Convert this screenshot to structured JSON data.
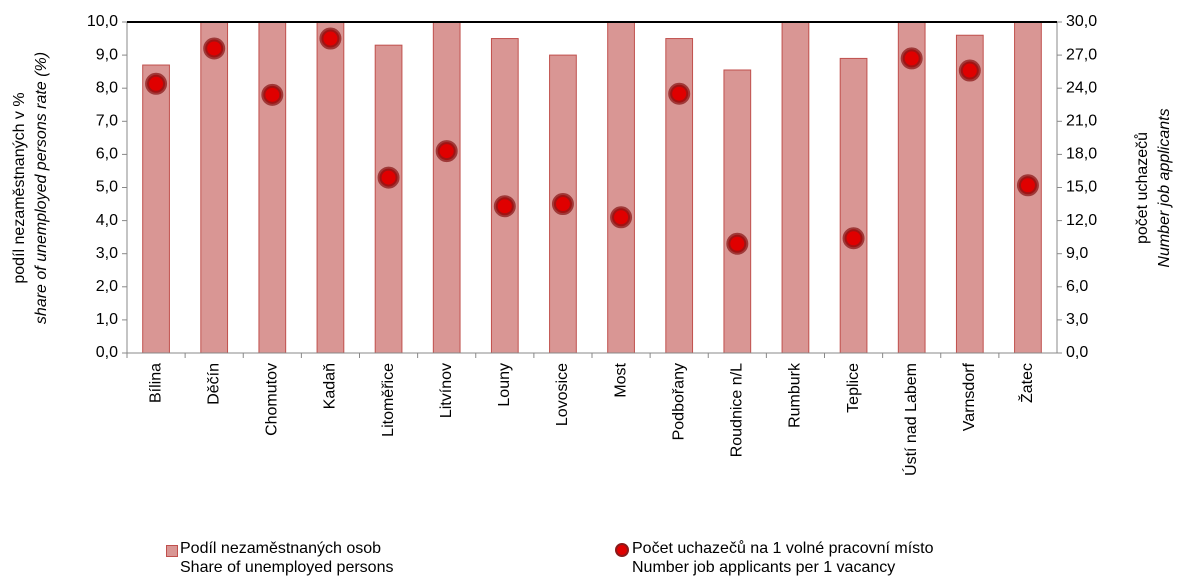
{
  "chart_data": {
    "type": "bar_dot",
    "y_label": "podíl nezaměstnaných v %",
    "y_label_en": "share of unemployed persons  rate (%)",
    "y2_label": "počet uchazečů",
    "y2_label_en": "Number job applicants",
    "categories": [
      "Bílina",
      "Děčín",
      "Chomutov",
      "Kadaň",
      "Litoměřice",
      "Litvínov",
      "Louny",
      "Lovosice",
      "Most",
      "Podbořany",
      "Roudnice n/L",
      "Rumburk",
      "Teplice",
      "Ústí nad Labem",
      "Varnsdorf",
      "Žatec"
    ],
    "series": [
      {
        "name": "Podíl nezaměstnaných osob\nShare of unemployed persons",
        "type": "bar",
        "color": "#d99694",
        "edge": "#c0504d",
        "values": [
          8.7,
          10.0,
          10.0,
          10.0,
          9.3,
          10.0,
          9.5,
          9.0,
          10.0,
          9.5,
          8.55,
          10.0,
          8.9,
          10.0,
          9.6,
          10.0
        ]
      },
      {
        "name": "Počet uchazečů na 1 volné pracovní místo\nNumber job applicants per 1 vacancy",
        "type": "dot",
        "axis": "y2",
        "color": "#e00000",
        "edge": "#8b1a1a",
        "values": [
          24.4,
          27.6,
          23.4,
          28.5,
          15.9,
          18.3,
          13.3,
          13.5,
          12.3,
          23.5,
          9.9,
          null,
          10.4,
          26.7,
          25.6,
          15.2
        ]
      }
    ],
    "ylim": [
      0,
      10
    ],
    "yticks": [
      {
        "value": 0,
        "label": "0,0"
      },
      {
        "value": 1,
        "label": "1,0"
      },
      {
        "value": 2,
        "label": "2,0"
      },
      {
        "value": 3,
        "label": "3,0"
      },
      {
        "value": 4,
        "label": "4,0"
      },
      {
        "value": 5,
        "label": "5,0"
      },
      {
        "value": 6,
        "label": "6,0"
      },
      {
        "value": 7,
        "label": "7,0"
      },
      {
        "value": 8,
        "label": "8,0"
      },
      {
        "value": 9,
        "label": "9,0"
      },
      {
        "value": 10,
        "label": "10,0"
      }
    ],
    "y2lim": [
      0,
      30
    ],
    "y2ticks": [
      {
        "value": 0,
        "label": "0,0"
      },
      {
        "value": 3,
        "label": "3,0"
      },
      {
        "value": 6,
        "label": "6,0"
      },
      {
        "value": 9,
        "label": "9,0"
      },
      {
        "value": 12,
        "label": "12,0"
      },
      {
        "value": 15,
        "label": "15,0"
      },
      {
        "value": 18,
        "label": "18,0"
      },
      {
        "value": 21,
        "label": "21,0"
      },
      {
        "value": 24,
        "label": "24,0"
      },
      {
        "value": 27,
        "label": "27,0"
      },
      {
        "value": 30,
        "label": "30,0"
      }
    ]
  }
}
